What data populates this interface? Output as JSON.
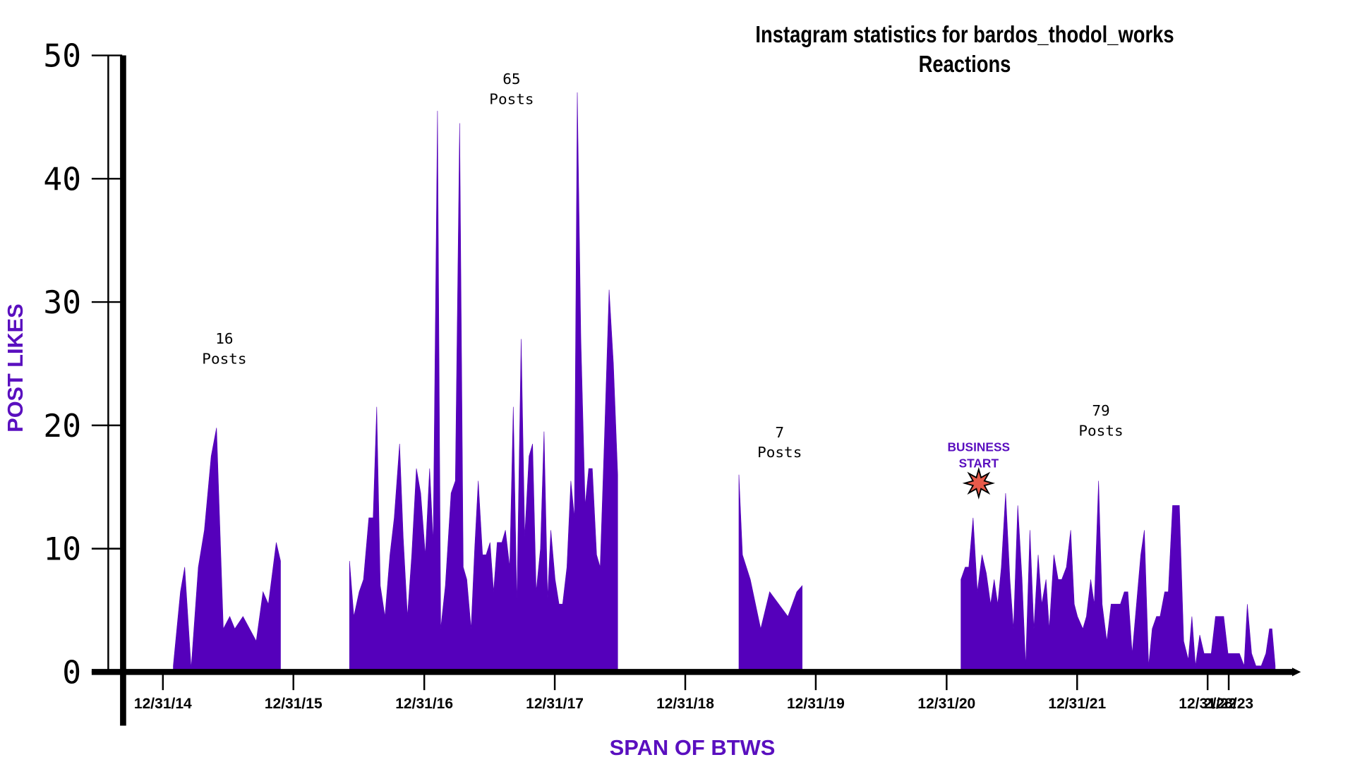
{
  "chart_data": {
    "type": "area",
    "title": "Instagram statistics for bardos_thodol_works",
    "subtitle": "Reactions",
    "y_label": "POST LIKES",
    "x_label": "SPAN OF BTWS",
    "color": "#5500bb",
    "ylim": [
      0,
      50
    ],
    "yticks": [
      0,
      10,
      20,
      30,
      40,
      50
    ],
    "xlim": [
      "09/18/14",
      "09/30/23"
    ],
    "xticks": [
      "12/31/14",
      "12/31/15",
      "12/31/16",
      "12/31/17",
      "12/31/18",
      "12/31/19",
      "12/31/20",
      "12/31/21",
      "12/31/22",
      "2/28/23"
    ],
    "annotations": [
      [
        "16",
        "Posts"
      ],
      [
        "65",
        "Posts"
      ],
      [
        "7",
        "Posts"
      ],
      [
        "BUSINESS",
        "START"
      ],
      [
        "79",
        "Posts"
      ]
    ],
    "x": [
      "01/29/15",
      "02/18/15",
      "03/02/15",
      "03/20/15",
      "04/09/15",
      "04/26/15",
      "05/15/15",
      "05/30/15",
      "06/18/15",
      "07/06/15",
      "07/20/15",
      "08/12/15",
      "09/18/15",
      "10/07/15",
      "10/22/15",
      "11/13/15",
      "11/25/15",
      null,
      "06/05/16",
      "06/17/16",
      "07/02/16",
      "07/14/16",
      "07/29/16",
      "08/10/16",
      "08/20/16",
      "08/30/16",
      "09/12/16",
      "09/26/16",
      "10/08/16",
      "10/23/16",
      "11/02/16",
      "11/14/16",
      "11/26/16",
      "12/09/16",
      "12/21/16",
      "01/03/17",
      "01/15/17",
      "01/25/17",
      "02/06/17",
      "02/15/17",
      "02/28/17",
      "03/16/17",
      "03/28/17",
      "04/09/17",
      "04/19/17",
      "04/29/17",
      "05/11/17",
      "05/21/17",
      "05/31/17",
      "06/12/17",
      "06/22/17",
      "07/03/17",
      "07/13/17",
      "07/23/17",
      "08/05/17",
      "08/15/17",
      "08/27/17",
      "09/06/17",
      "09/16/17",
      "09/28/17",
      "10/08/17",
      "10/20/17",
      "10/30/17",
      "11/09/17",
      "11/21/17",
      "12/01/17",
      "12/11/17",
      "12/20/17",
      "01/01/18",
      "01/12/18",
      "01/22/18",
      "02/03/18",
      "02/14/18",
      "02/24/18",
      "03/04/18",
      "03/14/18",
      "03/26/18",
      "04/05/18",
      "04/15/18",
      "04/27/18",
      "05/07/18",
      "05/19/18",
      "06/01/18",
      "06/13/18",
      "06/25/18",
      null,
      "05/30/19",
      "06/09/19",
      "07/01/19",
      "07/30/19",
      "08/24/19",
      "10/14/19",
      "11/08/19",
      "11/23/19",
      null,
      "02/09/21",
      "02/21/21",
      "03/03/21",
      "03/15/21",
      "03/27/21",
      "04/09/21",
      "04/21/21",
      "05/03/21",
      "05/13/21",
      "05/23/21",
      "06/02/21",
      "06/14/21",
      "06/26/21",
      "07/06/21",
      "07/18/21",
      "07/30/21",
      "08/09/21",
      "08/21/21",
      "09/01/21",
      "09/13/21",
      "09/23/21",
      "10/05/21",
      "10/14/21",
      "10/27/21",
      "11/08/21",
      "11/18/21",
      "12/01/21",
      "12/13/21",
      "12/23/21",
      "01/01/22",
      "01/16/22",
      "01/26/22",
      "02/07/22",
      "02/17/22",
      "03/01/22",
      "03/11/22",
      "03/24/22",
      "04/05/22",
      "05/01/22",
      "05/12/22",
      "05/22/22",
      "06/03/22",
      "06/15/22",
      "06/27/22",
      "07/07/22",
      "07/19/22",
      "07/29/22",
      "08/10/22",
      "08/20/22",
      "09/02/22",
      "09/12/22",
      "09/24/22",
      "10/13/22",
      "10/25/22",
      "11/07/22",
      "11/17/22",
      "11/27/22",
      "12/09/22",
      "12/21/22",
      "01/10/23",
      "01/22/23",
      "02/14/23",
      "02/26/23",
      "03/30/23",
      "04/12/23",
      "04/21/23",
      "05/03/23",
      "05/15/23",
      "05/30/23",
      "06/12/23",
      "06/22/23",
      "06/29/23",
      "07/08/23"
    ],
    "values": [
      0.5,
      6.5,
      8.5,
      0.3,
      8.5,
      11.5,
      17.5,
      19.8,
      3.5,
      4.5,
      3.5,
      4.5,
      2.5,
      6.5,
      5.5,
      10.5,
      9,
      null,
      9,
      4.5,
      6.5,
      7.5,
      12.5,
      12.5,
      21.5,
      7,
      4.5,
      9.5,
      12.5,
      18.5,
      11,
      4.5,
      9.5,
      16.5,
      14.5,
      9.5,
      16.5,
      10.5,
      45.5,
      3.5,
      7,
      14.5,
      15.5,
      44.5,
      8.5,
      7.5,
      3.5,
      10,
      15.5,
      9.5,
      9.5,
      10.5,
      6.5,
      10.5,
      10.5,
      11.5,
      8.5,
      21.5,
      5.5,
      27,
      11,
      17.5,
      18.5,
      6.5,
      10,
      19.5,
      6,
      11.5,
      7.5,
      5.5,
      5.5,
      8.5,
      15.5,
      12.5,
      47,
      27,
      13.5,
      16.5,
      16.5,
      9.5,
      8.5,
      19,
      31,
      25,
      16,
      null,
      16,
      9.5,
      7.5,
      3.5,
      6.5,
      4.5,
      6.5,
      7,
      null,
      7.5,
      8.5,
      8.5,
      12.5,
      6.5,
      9.5,
      8,
      5.5,
      7.5,
      5.5,
      8.5,
      14.5,
      7.5,
      3.5,
      13.5,
      7.5,
      0.5,
      11.5,
      3.5,
      9.5,
      5.5,
      7.5,
      3.5,
      9.5,
      7.5,
      7.5,
      8.5,
      11.5,
      5.5,
      4.5,
      3.5,
      4.5,
      7.5,
      5.5,
      15.5,
      5.5,
      2.5,
      5.5,
      5.5,
      6.5,
      6.5,
      1.5,
      5.5,
      9.5,
      11.5,
      0.5,
      3.5,
      4.5,
      4.5,
      6.5,
      6.5,
      13.5,
      13.5,
      2.5,
      1,
      4.5,
      0.5,
      3,
      1.5,
      1.5,
      4.5,
      4.5,
      1.5,
      1.5,
      0.5,
      5.5,
      1.5,
      0.5,
      0.5,
      1.5,
      3.5,
      3.5,
      0.5
    ]
  }
}
